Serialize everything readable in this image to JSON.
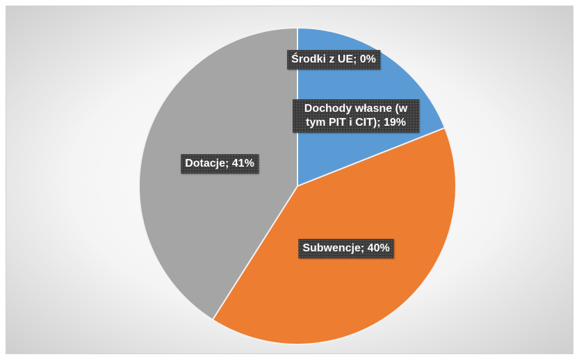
{
  "chart_data": {
    "type": "pie",
    "labels": [
      "Środki z UE; 0%",
      "Dochody własne (w tym PIT i CIT); 19%",
      "Subwencje; 40%",
      "Dotacje; 41%"
    ],
    "values": [
      0,
      19,
      40,
      41
    ],
    "colors": [
      "#ffc000",
      "#5b9bd5",
      "#ed7d31",
      "#a5a5a5"
    ]
  }
}
